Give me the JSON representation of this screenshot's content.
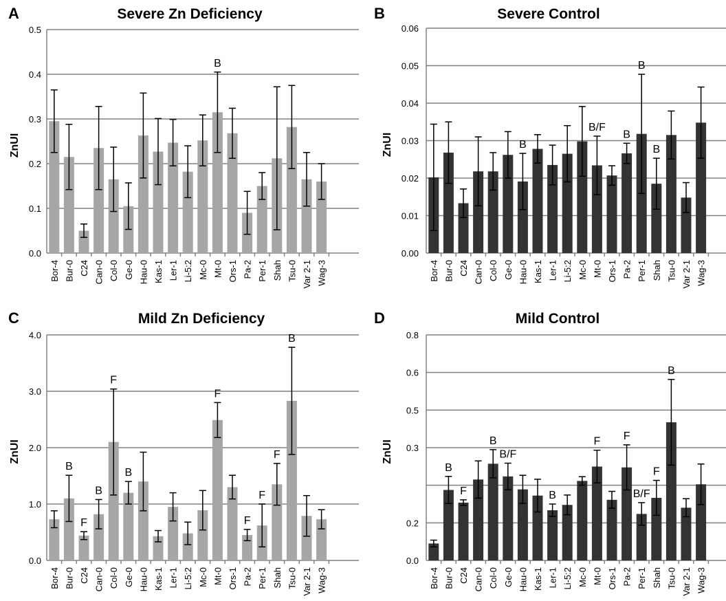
{
  "colors": {
    "light_bar": "#a6a6a6",
    "dark_bar": "#333333",
    "grid": "#808080"
  },
  "chart_data": [
    {
      "panel": "A",
      "title": "Severe Zn Deficiency",
      "type": "bar",
      "ylabel": "ZnUI",
      "xlabel": "",
      "ylim": [
        0,
        0.5
      ],
      "yticks": [
        "0.0",
        "0.1",
        "0.2",
        "0.3",
        "0.4",
        "0.5"
      ],
      "grid": true,
      "bar_color": "#a6a6a6",
      "categories": [
        "Bor-4",
        "Bur-0",
        "C24",
        "Can-0",
        "Col-0",
        "Ge-0",
        "Hau-0",
        "Kas-1",
        "Ler-1",
        "Li-5:2",
        "Mc-0",
        "Mt-0",
        "Ors-1",
        "Pa-2",
        "Per-1",
        "Shah",
        "Tsu-0",
        "Var 2-1",
        "Wag-3"
      ],
      "values": [
        0.295,
        0.215,
        0.05,
        0.235,
        0.165,
        0.105,
        0.263,
        0.227,
        0.247,
        0.182,
        0.252,
        0.315,
        0.268,
        0.09,
        0.15,
        0.212,
        0.282,
        0.165,
        0.16
      ],
      "error": [
        0.07,
        0.073,
        0.015,
        0.093,
        0.072,
        0.052,
        0.095,
        0.074,
        0.052,
        0.058,
        0.057,
        0.09,
        0.056,
        0.048,
        0.03,
        0.16,
        0.093,
        0.06,
        0.04
      ],
      "annotations": [
        {
          "category": "Mt-0",
          "text": "B"
        }
      ]
    },
    {
      "panel": "B",
      "title": "Severe Control",
      "type": "bar",
      "ylabel": "ZnUI",
      "xlabel": "",
      "ylim": [
        0,
        0.06
      ],
      "yticks": [
        "0.00",
        "0.01",
        "0.02",
        "0.03",
        "0.04",
        "0.05",
        "0.06"
      ],
      "grid": true,
      "bar_color": "#333333",
      "categories": [
        "Bor-4",
        "Bur-0",
        "C24",
        "Can-0",
        "Col-0",
        "Ge-0",
        "Hau-0",
        "Kas-1",
        "Ler-1",
        "Li-5:2",
        "Mc-0",
        "Mt-0",
        "Ors-1",
        "Pa-2",
        "Per-1",
        "Shah",
        "Tsu-0",
        "Var 2-1",
        "Wag-3"
      ],
      "values": [
        0.0202,
        0.0268,
        0.0133,
        0.0218,
        0.0218,
        0.0262,
        0.0191,
        0.0278,
        0.0235,
        0.0265,
        0.0298,
        0.0234,
        0.0207,
        0.0266,
        0.0318,
        0.0185,
        0.0315,
        0.0148,
        0.0348
      ],
      "error": [
        0.0142,
        0.0082,
        0.0038,
        0.0092,
        0.005,
        0.0062,
        0.0075,
        0.0038,
        0.0053,
        0.0075,
        0.0093,
        0.0078,
        0.0026,
        0.0027,
        0.0159,
        0.0068,
        0.0064,
        0.004,
        0.0095
      ],
      "annotations": [
        {
          "category": "Hau-0",
          "text": "B"
        },
        {
          "category": "Mt-0",
          "text": "B/F"
        },
        {
          "category": "Pa-2",
          "text": "B"
        },
        {
          "category": "Per-1",
          "text": "B"
        },
        {
          "category": "Shah",
          "text": "B"
        }
      ]
    },
    {
      "panel": "C",
      "title": "Mild Zn Deficiency",
      "type": "bar",
      "ylabel": "ZnUI",
      "xlabel": "",
      "ylim": [
        0,
        4.0
      ],
      "yticks": [
        "0.0",
        "1.0",
        "2.0",
        "3.0",
        "4.0"
      ],
      "grid": true,
      "bar_color": "#a6a6a6",
      "categories": [
        "Bor-4",
        "Bur-0",
        "C24",
        "Can-0",
        "Col-0",
        "Ge-0",
        "Hau-0",
        "Kas-1",
        "Ler-1",
        "Li-5:2",
        "Mc-0",
        "Mt-0",
        "Ors-1",
        "Pa-2",
        "Per-1",
        "Shah",
        "Tsu-0",
        "Var 2-1",
        "Wag-3"
      ],
      "values": [
        0.73,
        1.1,
        0.44,
        0.82,
        2.1,
        1.2,
        1.4,
        0.43,
        0.95,
        0.48,
        0.89,
        2.49,
        1.3,
        0.45,
        0.62,
        1.35,
        2.83,
        0.79,
        0.73
      ],
      "error": [
        0.15,
        0.41,
        0.07,
        0.26,
        0.94,
        0.2,
        0.52,
        0.1,
        0.25,
        0.2,
        0.35,
        0.31,
        0.21,
        0.1,
        0.38,
        0.37,
        0.95,
        0.36,
        0.17
      ],
      "annotations": [
        {
          "category": "Bur-0",
          "text": "B"
        },
        {
          "category": "C24",
          "text": "F"
        },
        {
          "category": "Can-0",
          "text": "B"
        },
        {
          "category": "Col-0",
          "text": "F"
        },
        {
          "category": "Ge-0",
          "text": "B"
        },
        {
          "category": "Mt-0",
          "text": "F"
        },
        {
          "category": "Pa-2",
          "text": "F"
        },
        {
          "category": "Per-1",
          "text": "F"
        },
        {
          "category": "Shah",
          "text": "F"
        },
        {
          "category": "Tsu-0",
          "text": "B"
        }
      ]
    },
    {
      "panel": "D",
      "title": "Mild Control",
      "type": "bar",
      "ylabel": "ZnUI",
      "xlabel": "",
      "ylim": [
        0,
        0.8
      ],
      "yticks": [
        "0.0",
        "0.2",
        "",
        "0.3",
        "0.5",
        "0.6",
        "0.8"
      ],
      "grid": true,
      "bar_color": "#333333",
      "categories": [
        "Bor-4",
        "Bur-0",
        "C24",
        "Can-0",
        "Col-0",
        "Ge-0",
        "Hau-0",
        "Kas-1",
        "Ler-1",
        "Li-5:2",
        "Mc-0",
        "Mt-0",
        "Ors-1",
        "Pa-2",
        "Per-1",
        "Shah",
        "Tsu-0",
        "Var 2-1",
        "Wag-3"
      ],
      "values": [
        0.06,
        0.25,
        0.205,
        0.287,
        0.343,
        0.298,
        0.252,
        0.23,
        0.178,
        0.197,
        0.282,
        0.333,
        0.215,
        0.33,
        0.165,
        0.222,
        0.49,
        0.187,
        0.27
      ],
      "error": [
        0.012,
        0.048,
        0.01,
        0.066,
        0.05,
        0.047,
        0.05,
        0.058,
        0.022,
        0.035,
        0.015,
        0.058,
        0.03,
        0.08,
        0.04,
        0.062,
        0.152,
        0.032,
        0.072
      ],
      "annotations": [
        {
          "category": "Bur-0",
          "text": "B"
        },
        {
          "category": "C24",
          "text": "F"
        },
        {
          "category": "Col-0",
          "text": "B"
        },
        {
          "category": "Ge-0",
          "text": "B/F"
        },
        {
          "category": "Ler-1",
          "text": "B"
        },
        {
          "category": "Mt-0",
          "text": "F"
        },
        {
          "category": "Pa-2",
          "text": "F"
        },
        {
          "category": "Per-1",
          "text": "B/F"
        },
        {
          "category": "Shah",
          "text": "F"
        },
        {
          "category": "Tsu-0",
          "text": "B"
        }
      ]
    }
  ]
}
